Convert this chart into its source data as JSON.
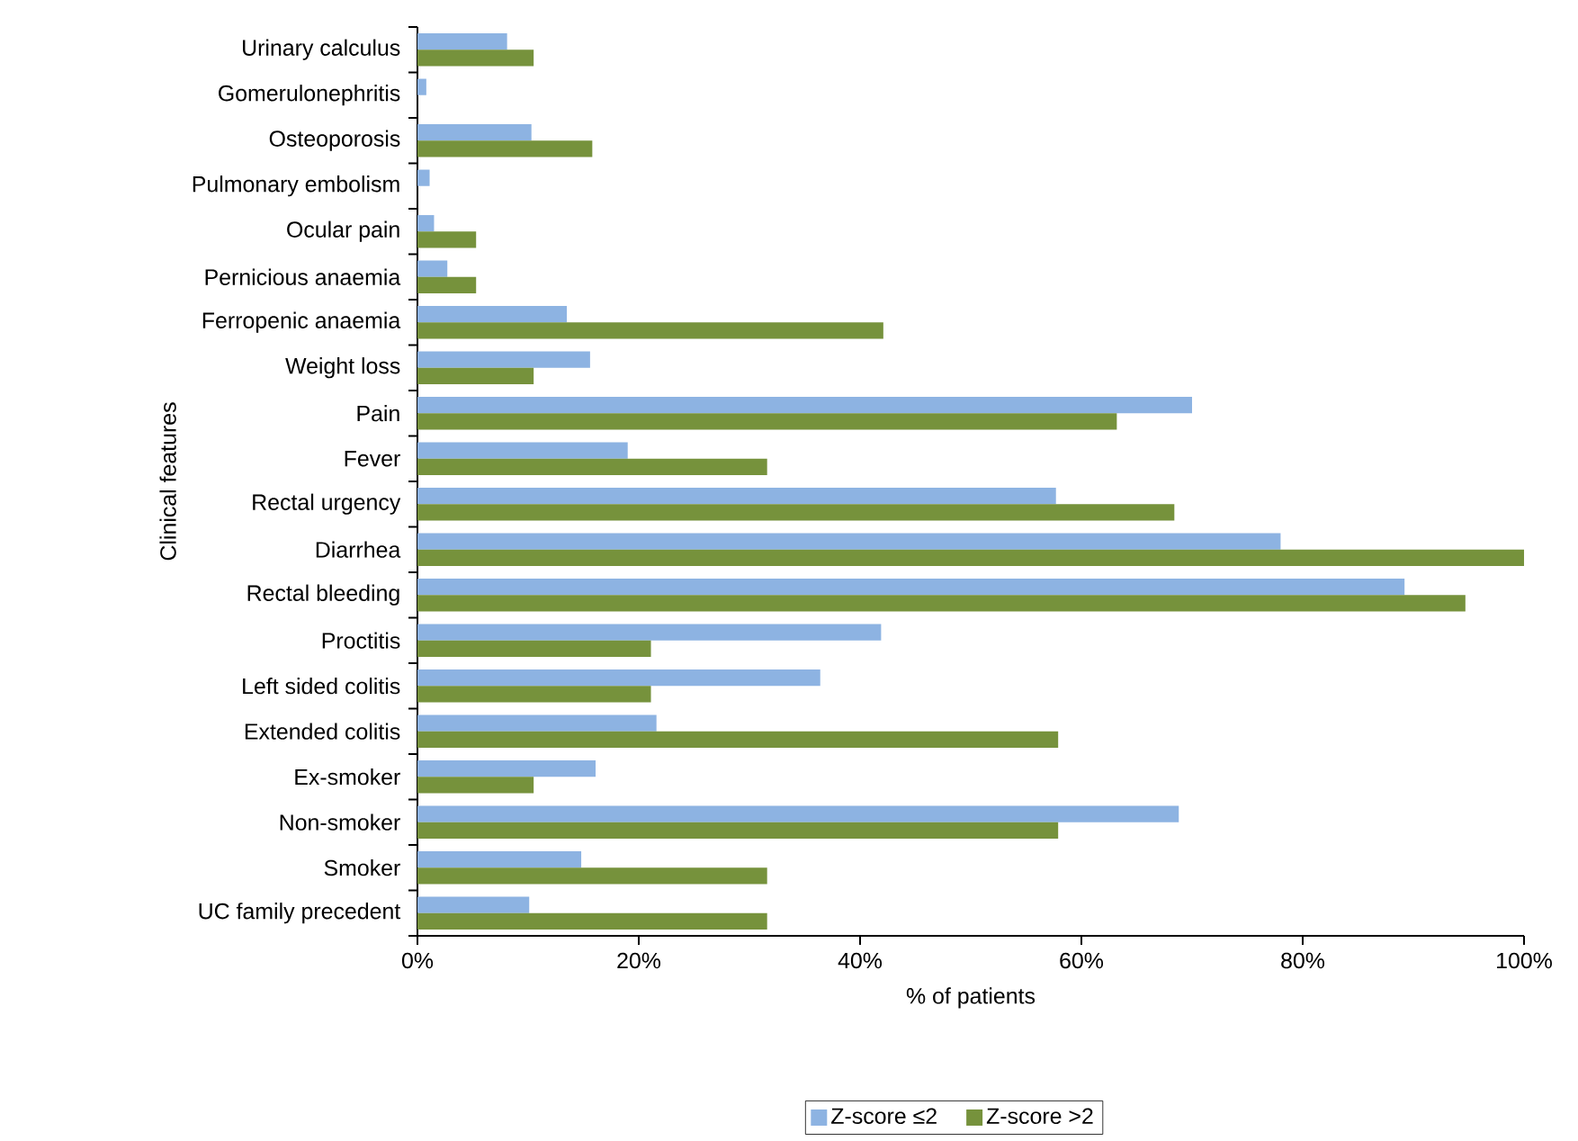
{
  "chart_data": {
    "type": "bar",
    "orientation": "horizontal",
    "xlabel": "% of patients",
    "ylabel": "Clinical features",
    "categories": [
      "Urinary calculus",
      "Gomerulonephritis",
      "Osteoporosis",
      "Pulmonary embolism",
      "Ocular pain",
      "Pernicious anaemia",
      "Ferropenic anaemia",
      "Weight loss",
      "Pain",
      "Fever",
      "Rectal urgency",
      "Diarrhea",
      "Rectal bleeding",
      "Proctitis",
      "Left sided colitis",
      "Extended colitis",
      "Ex-smoker",
      "Non-smoker",
      "Smoker",
      "UC family precedent"
    ],
    "series": [
      {
        "name": "Z-score ≤2",
        "color": "#8db3e2",
        "values": [
          8.1,
          0.8,
          10.3,
          1.1,
          1.5,
          2.7,
          13.5,
          15.6,
          70.0,
          19.0,
          57.7,
          78.0,
          89.2,
          41.9,
          36.4,
          21.6,
          16.1,
          68.8,
          14.8,
          10.1
        ]
      },
      {
        "name": "Z-score >2",
        "color": "#76923c",
        "values": [
          10.5,
          0,
          15.8,
          0,
          5.3,
          5.3,
          42.1,
          10.5,
          63.2,
          31.6,
          68.4,
          100,
          94.7,
          21.1,
          21.1,
          57.9,
          10.5,
          57.9,
          31.6,
          31.6
        ]
      }
    ],
    "xlim": [
      0,
      100
    ],
    "xticks": [
      {
        "value": 0,
        "label": "0%"
      },
      {
        "value": 20,
        "label": "20%"
      },
      {
        "value": 40,
        "label": "40%"
      },
      {
        "value": 60,
        "label": "60%"
      },
      {
        "value": 80,
        "label": "80%"
      },
      {
        "value": 100,
        "label": "100%"
      }
    ],
    "grid": false,
    "legend": "bottom"
  }
}
